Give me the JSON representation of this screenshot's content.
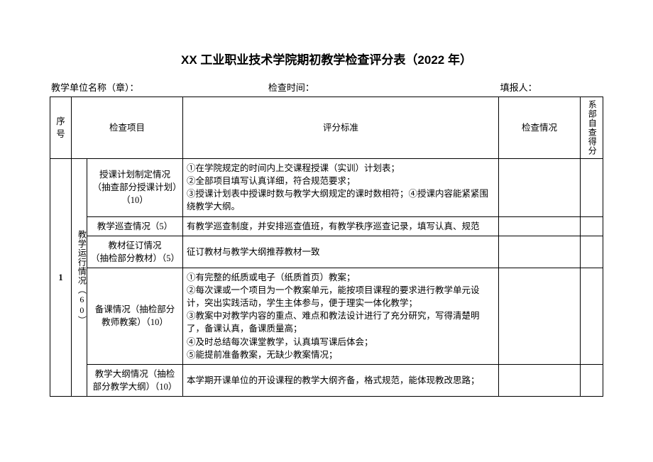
{
  "title": "XX 工业职业技术学院期初教学检查评分表（2022 年）",
  "meta": {
    "unit_label": "教学单位名称（章）：",
    "time_label": "检查时间：",
    "reporter_label": "填报人："
  },
  "headers": {
    "seq": "序号",
    "item": "检查项目",
    "standard": "评分标准",
    "check": "检查情况",
    "score": "系部自查得分"
  },
  "section": {
    "seq": "1",
    "category": "教学运行情况（60）"
  },
  "rows": [
    {
      "item": "授课计划制定情况（抽查部分授课计划）（10）",
      "standard": "①在学院规定的时间内上交课程授课（实训）计划表；\n②全部项目填写认真详细，符合规范要求；\n③授课计划表中授课时数与教学大纲规定的课时数相符；④授课内容能紧紧围绕教学大纲。"
    },
    {
      "item": "教学巡查情况（5）",
      "standard": "有教学巡查制度，并安排巡查值班，有教学秩序巡查记录，填写认真、规范"
    },
    {
      "item": "教材征订情况\n（抽检部分教材）（5）",
      "standard": "征订教材与教学大纲推荐教材一致"
    },
    {
      "item": "备课情况（抽检部分教师教案）（10）",
      "standard": "①有完整的纸质或电子（纸质首页）教案；\n②每次课或一个项目为一个教案单元，能按项目课程的要求进行教学单元设计，突出实践活动，学生主体参与，便于理实一体化教学；\n③教案中对教学内容的重点、难点和教法设计进行了充分研究，写得清楚明了，备课认真，备课质量高；\n④及时总结每次课堂教学，认真填写课后体会；\n⑤能提前准备教案，无缺少教案情况；"
    },
    {
      "item": "教学大纲情况（抽检部分教学大纲）（10）",
      "standard": "本学期开课单位的开设课程的教学大纲齐备，格式规范，能体现教改思路；"
    }
  ]
}
